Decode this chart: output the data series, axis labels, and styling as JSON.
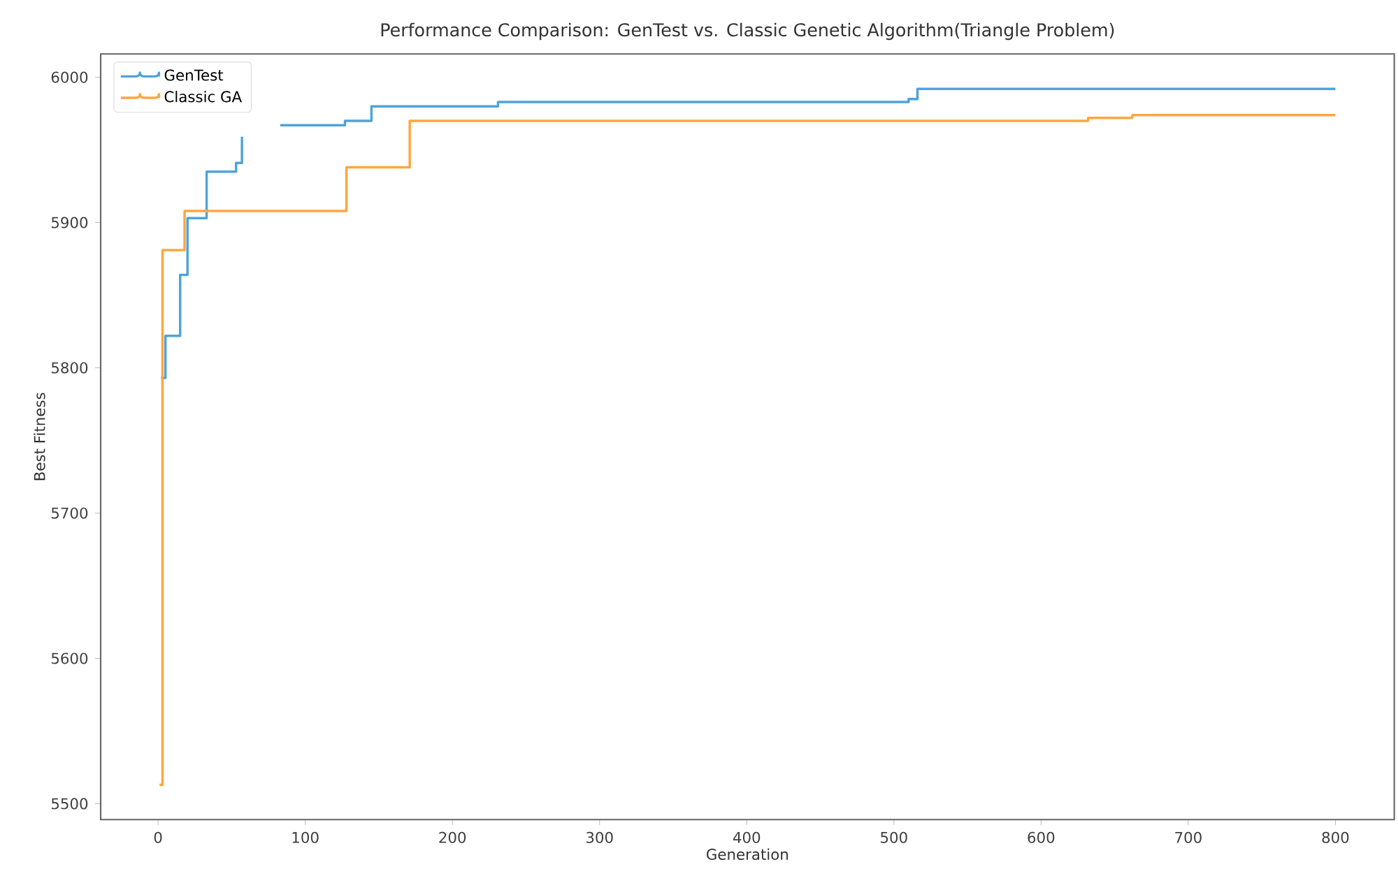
{
  "chart_data": {
    "type": "step",
    "title": "Performance Comparison: GenTest vs. Classic Genetic Algorithm(Triangle Problem)",
    "xlabel": "Generation",
    "ylabel": "Best Fitness",
    "xlim": [
      -39,
      840
    ],
    "ylim": [
      5489,
      6016
    ],
    "xticks": [
      0,
      100,
      200,
      300,
      400,
      500,
      600,
      700,
      800
    ],
    "yticks": [
      5500,
      5600,
      5700,
      5800,
      5900,
      6000
    ],
    "grid": false,
    "legend": "top left",
    "marker": "none",
    "line_style": "solid",
    "series": [
      {
        "name": "GenTest",
        "color": "#4fa3d9",
        "x": [
          2,
          5,
          15,
          20,
          33,
          53,
          57,
          60,
          83,
          127,
          145,
          231,
          510,
          516,
          800
        ],
        "values": [
          5793,
          5822,
          5864,
          5903,
          5935,
          5941,
          5959,
          null,
          5967,
          5970,
          5980,
          5983,
          5985,
          5992,
          5992
        ]
      },
      {
        "name": "Classic GA",
        "color": "#ffa640",
        "x": [
          1,
          3,
          18,
          128,
          171,
          632,
          662,
          800
        ],
        "values": [
          5513,
          5881,
          5908,
          5938,
          5970,
          5972,
          5974,
          5974
        ]
      }
    ]
  }
}
